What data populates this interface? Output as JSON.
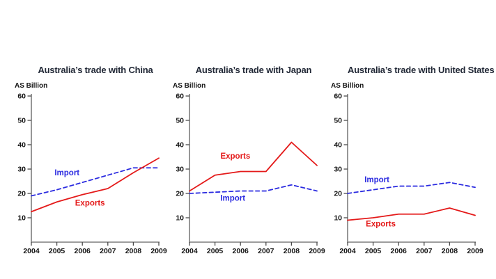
{
  "page": {
    "background": "#ffffff",
    "figure_description": "Three line charts of Australia's trade (AS Billion), 2004-2009"
  },
  "style": {
    "axis_color": "#7d7d7d",
    "tick_color": "#4a4a4a",
    "tick_label_color": "#141414",
    "title_color": "#212836",
    "export_color": "#e41a1a",
    "import_color": "#2b2be0"
  },
  "chart_data": [
    {
      "type": "line",
      "title": "Australia’s trade with China",
      "ylabel": "AS Billion",
      "xlabel": "",
      "categories": [
        "2004",
        "2005",
        "2006",
        "2007",
        "2008",
        "2009"
      ],
      "y_ticks": [
        10,
        20,
        30,
        40,
        50,
        60
      ],
      "ylim": [
        0,
        60
      ],
      "grid": false,
      "legend": "inline-labels",
      "series": [
        {
          "name": "Import",
          "color": "#2b2be0",
          "line_style": "dashed",
          "values": [
            19,
            21.5,
            24.5,
            27.5,
            30.5,
            30.5
          ],
          "label_pos": {
            "x": 2005.4,
            "y": 27.5
          }
        },
        {
          "name": "Exports",
          "color": "#e41a1a",
          "line_style": "solid",
          "values": [
            12.5,
            16.5,
            19.5,
            22,
            28.5,
            34.5
          ],
          "label_pos": {
            "x": 2006.3,
            "y": 15
          }
        }
      ]
    },
    {
      "type": "line",
      "title": "Australia’s trade with Japan",
      "ylabel": "AS Billion",
      "xlabel": "",
      "categories": [
        "2004",
        "2005",
        "2006",
        "2007",
        "2008",
        "2009"
      ],
      "y_ticks": [
        10,
        20,
        30,
        40,
        50,
        60
      ],
      "ylim": [
        0,
        60
      ],
      "grid": false,
      "legend": "inline-labels",
      "series": [
        {
          "name": "Import",
          "color": "#2b2be0",
          "line_style": "dashed",
          "values": [
            20,
            20.5,
            21,
            21,
            23.5,
            21
          ],
          "label_pos": {
            "x": 2005.7,
            "y": 17
          }
        },
        {
          "name": "Exports",
          "color": "#e41a1a",
          "line_style": "solid",
          "values": [
            21,
            27.5,
            29,
            29,
            41,
            31.5
          ],
          "label_pos": {
            "x": 2005.8,
            "y": 34.3
          }
        }
      ]
    },
    {
      "type": "line",
      "title": "Australia’s trade with United States",
      "ylabel": "AS Billion",
      "xlabel": "",
      "categories": [
        "2004",
        "2005",
        "2006",
        "2007",
        "2008",
        "2009"
      ],
      "y_ticks": [
        10,
        20,
        30,
        40,
        50,
        60
      ],
      "ylim": [
        0,
        60
      ],
      "grid": false,
      "legend": "inline-labels",
      "series": [
        {
          "name": "Import",
          "color": "#2b2be0",
          "line_style": "dashed",
          "values": [
            20,
            21.5,
            23,
            23,
            24.5,
            22.5
          ],
          "label_pos": {
            "x": 2005.15,
            "y": 24.6
          }
        },
        {
          "name": "Exports",
          "color": "#e41a1a",
          "line_style": "solid",
          "values": [
            9,
            10,
            11.5,
            11.5,
            14,
            11
          ],
          "label_pos": {
            "x": 2005.3,
            "y": 6.5
          }
        }
      ]
    }
  ]
}
